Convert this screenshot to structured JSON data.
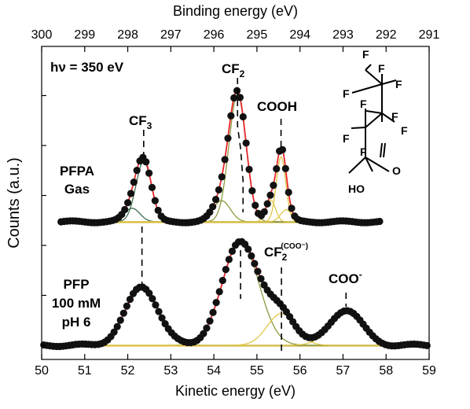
{
  "chart_data": {
    "type": "line",
    "xlabel": "Kinetic energy (eV)",
    "x2label": "Binding energy (eV)",
    "ylabel": "Counts (a.u.)",
    "xlim": [
      50,
      59
    ],
    "x_ticks": [
      "50",
      "51",
      "52",
      "53",
      "54",
      "55",
      "56",
      "57",
      "58",
      "59"
    ],
    "x2_ticks": [
      "300",
      "299",
      "298",
      "297",
      "296",
      "295",
      "294",
      "293",
      "292",
      "291"
    ],
    "grid": false,
    "colors": {
      "data": "#111111",
      "fit": "#e8262b",
      "cf3": "#3f6e4b",
      "cf2": "#8a9a3e",
      "cooh": "#e0c84a",
      "baseline": "#e6c25a",
      "guide": "#000000"
    },
    "panels": [
      {
        "name": "PFPA Gas",
        "label_lines": [
          "PFPA",
          "Gas"
        ],
        "baseline": 0.0,
        "data_xrange": [
          50.45,
          57.85
        ],
        "components": [
          {
            "center": 52.37,
            "amplitude": 0.8,
            "sigma": 0.18
          },
          {
            "center": 52.1,
            "amplitude": 0.18,
            "sigma": 0.18
          },
          {
            "center": 54.55,
            "amplitude": 1.69,
            "sigma": 0.2
          },
          {
            "center": 54.18,
            "amplitude": 0.28,
            "sigma": 0.2
          },
          {
            "center": 55.56,
            "amplitude": 0.86,
            "sigma": 0.11
          },
          {
            "center": 55.32,
            "amplitude": 0.29,
            "sigma": 0.11
          },
          {
            "center": 55.68,
            "amplitude": 0.16,
            "sigma": 0.13
          }
        ],
        "annotations": [
          {
            "text": "CF",
            "sub": "3",
            "sup": "",
            "x": 52.37
          },
          {
            "text": "CF",
            "sub": "2",
            "sup": "",
            "x": 54.55
          },
          {
            "text": "COOH",
            "sub": "",
            "sup": "",
            "x": 55.56
          }
        ]
      },
      {
        "name": "PFP 100 mM pH 6",
        "label_lines": [
          "PFP",
          "100 mM",
          "pH 6"
        ],
        "baseline": 0.0,
        "data_xrange": [
          50.05,
          58.95
        ],
        "components": [
          {
            "center": 52.33,
            "amplitude": 0.59,
            "sigma": 0.38
          },
          {
            "center": 54.62,
            "amplitude": 1.05,
            "sigma": 0.42
          },
          {
            "center": 55.57,
            "amplitude": 0.32,
            "sigma": 0.33
          },
          {
            "center": 57.07,
            "amplitude": 0.36,
            "sigma": 0.37
          }
        ],
        "annotations": [
          {
            "text": "CF",
            "sub": "2",
            "sup": "(COO⁻)",
            "x": 55.57
          },
          {
            "text": "COO",
            "sub": "",
            "sup": "-",
            "x": 57.07
          }
        ]
      }
    ],
    "annotations": [
      {
        "text": "hν = 350 eV"
      }
    ],
    "molecule": {
      "atoms": [
        "F",
        "F",
        "F",
        "F",
        "F",
        "F",
        "F",
        "F",
        "F",
        "O",
        "HO"
      ]
    }
  }
}
